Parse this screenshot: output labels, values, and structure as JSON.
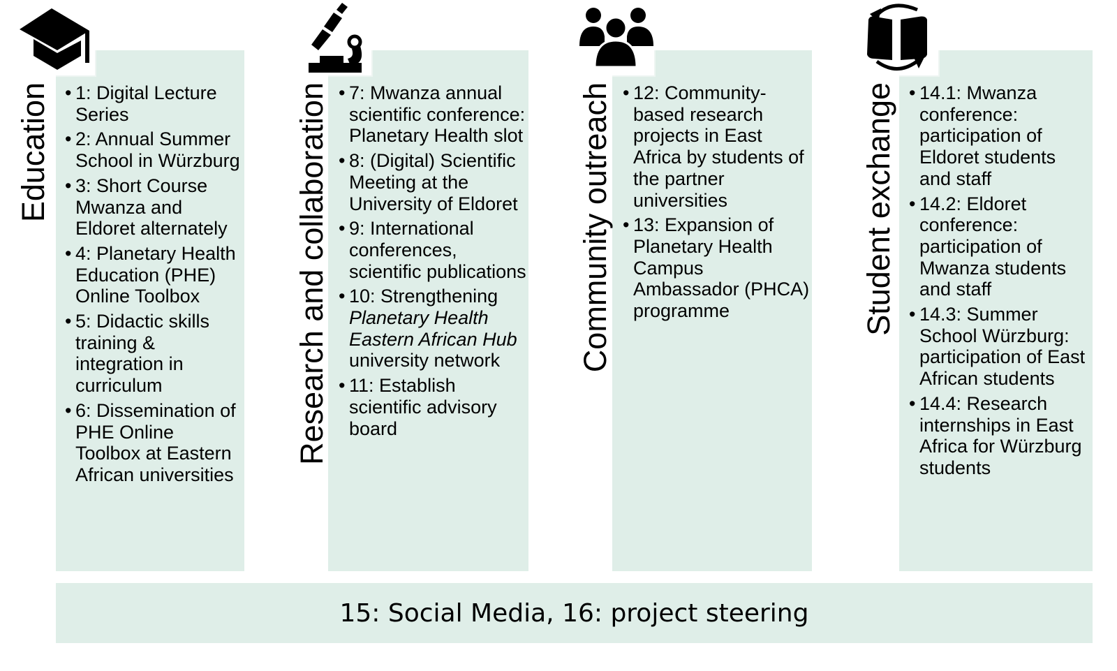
{
  "columns": [
    {
      "title": "Education",
      "icon": "graduation-cap-icon",
      "items": [
        "1: Digital Lecture Series",
        "2: Annual Summer School in Würzburg",
        "3: Short Course Mwanza and Eldoret alternately",
        "4: Planetary Health Education (PHE) Online Toolbox",
        "5: Didactic skills training & integration in curriculum",
        "6: Dissemination of PHE Online Toolbox at Eastern African universities"
      ]
    },
    {
      "title": "Research and collaboration",
      "icon": "microscope-icon",
      "items": [
        "7: Mwanza annual scientific conference: Planetary Health slot",
        "8: (Digital) Scientific Meeting at the University of Eldoret",
        "9: International conferences, scientific publications"
      ],
      "item10": {
        "prefix": "10: Strengthening ",
        "italic": "Planetary Health Eastern African Hub",
        "suffix": " university network"
      },
      "item11": "11: Establish scientific advisory board"
    },
    {
      "title": "Community outreach",
      "icon": "people-group-icon",
      "items": [
        "12: Community-based research projects in East Africa by students of the partner universities",
        "13: Expansion of Planetary Health Campus Ambassador (PHCA) programme"
      ]
    },
    {
      "title": "Student exchange",
      "icon": "exchange-book-icon",
      "items": [
        "14.1: Mwanza conference: participation of Eldoret students and staff",
        "14.2: Eldoret conference: participation of Mwanza students and staff",
        "14.3: Summer School Würzburg: participation of East African students",
        "14.4: Research internships in East Africa for Würzburg students"
      ]
    }
  ],
  "footer": "15: Social Media, 16: project steering",
  "colors": {
    "panel": "#dfeee8",
    "text": "#000000"
  }
}
